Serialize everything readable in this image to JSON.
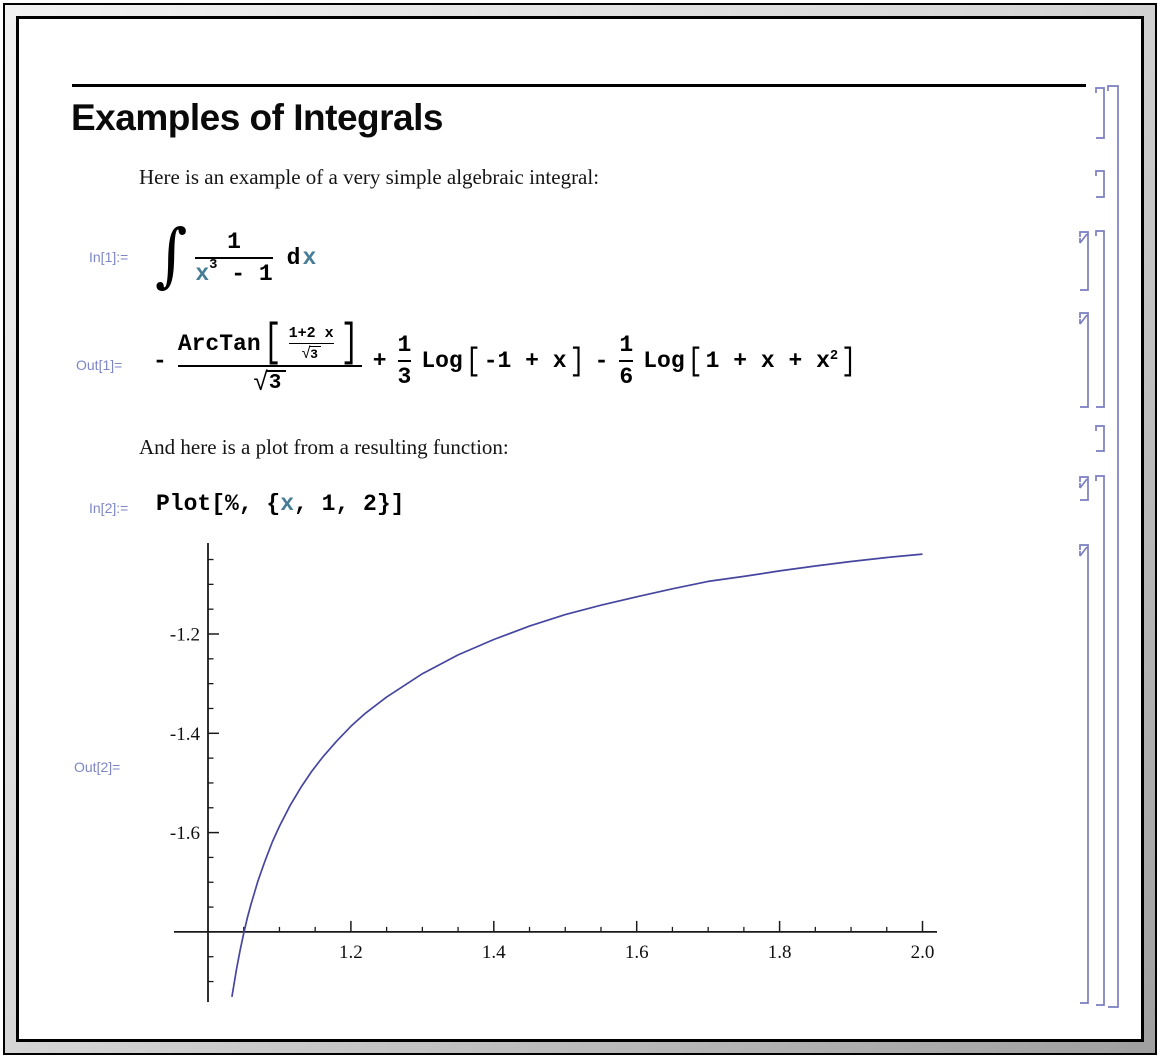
{
  "colors": {
    "label": "#7E86C6",
    "code_var": "#467D96",
    "curve": "#4646A0",
    "bracket": "#7A7EC0",
    "axis": "#1a1a1a"
  },
  "glyphs": {
    "lbracket": "[",
    "rbracket": "]",
    "plus": "+",
    "minus": "-",
    "sqrt": "√",
    "integral": "∫"
  },
  "section": {
    "title": "Examples of Integrals"
  },
  "cells": {
    "text1": "Here is an example of a very simple algebraic integral:",
    "text2": "And here is a plot from a resulting function:",
    "in1": {
      "label": "In[1]:=",
      "num": "1",
      "den_var": "x",
      "den_exp": "3",
      "den_tail": " - 1",
      "diff_d": "d",
      "diff_var": "x"
    },
    "out1": {
      "label": "Out[1]=",
      "fn_arctan": "ArcTan",
      "inner_num": "1+2 x",
      "sqrt3": "3",
      "f13_num": "1",
      "f13_den": "3",
      "fn_log": "Log",
      "log1_arg": "-1 + x",
      "f16_num": "1",
      "f16_den": "6",
      "log2_pre": "1 + x + x",
      "log2_sup": "2"
    },
    "in2": {
      "label": "In[2]:=",
      "code_pre": "Plot[%, {",
      "code_var": "x",
      "code_post": ", 1, 2}]"
    },
    "out2": {
      "label": "Out[2]="
    }
  },
  "chart_data": {
    "type": "line",
    "title": "",
    "expression": "-ArcTan[(1+2 x)/Sqrt[3]]/Sqrt[3] + Log[-1+x]/3 - Log[1+x+x^2]/6",
    "x_range": [
      1,
      2
    ],
    "axes_origin": [
      1.0,
      -1.8
    ],
    "grid": false,
    "x_ticks": [
      1.2,
      1.4,
      1.6,
      1.8,
      2.0
    ],
    "x_tick_labels": [
      "1.2",
      "1.4",
      "1.6",
      "1.8",
      "2.0"
    ],
    "y_ticks": [
      -1.2,
      -1.4,
      -1.6
    ],
    "y_tick_labels": [
      "-1.2",
      "-1.4",
      "-1.6"
    ],
    "minor_tick_step": 0.05,
    "x_minor_range": [
      1.05,
      1.95
    ],
    "y_minor_range": [
      -1.9,
      -1.05
    ],
    "points": [
      [
        1.0335,
        -1.931
      ],
      [
        1.034,
        -1.926
      ],
      [
        1.04,
        -1.874
      ],
      [
        1.045,
        -1.836
      ],
      [
        1.05,
        -1.803
      ],
      [
        1.055,
        -1.772
      ],
      [
        1.06,
        -1.745
      ],
      [
        1.07,
        -1.697
      ],
      [
        1.08,
        -1.656
      ],
      [
        1.09,
        -1.619
      ],
      [
        1.1,
        -1.587
      ],
      [
        1.115,
        -1.545
      ],
      [
        1.13,
        -1.509
      ],
      [
        1.145,
        -1.477
      ],
      [
        1.16,
        -1.449
      ],
      [
        1.18,
        -1.416
      ],
      [
        1.2,
        -1.386
      ],
      [
        1.22,
        -1.36
      ],
      [
        1.25,
        -1.327
      ],
      [
        1.3,
        -1.28
      ],
      [
        1.35,
        -1.242
      ],
      [
        1.4,
        -1.211
      ],
      [
        1.45,
        -1.184
      ],
      [
        1.5,
        -1.161
      ],
      [
        1.55,
        -1.142
      ],
      [
        1.6,
        -1.125
      ],
      [
        1.65,
        -1.109
      ],
      [
        1.7,
        -1.094
      ],
      [
        1.75,
        -1.084
      ],
      [
        1.8,
        -1.073
      ],
      [
        1.85,
        -1.063
      ],
      [
        1.9,
        -1.054
      ],
      [
        1.95,
        -1.046
      ],
      [
        2.0,
        -1.039
      ]
    ]
  }
}
